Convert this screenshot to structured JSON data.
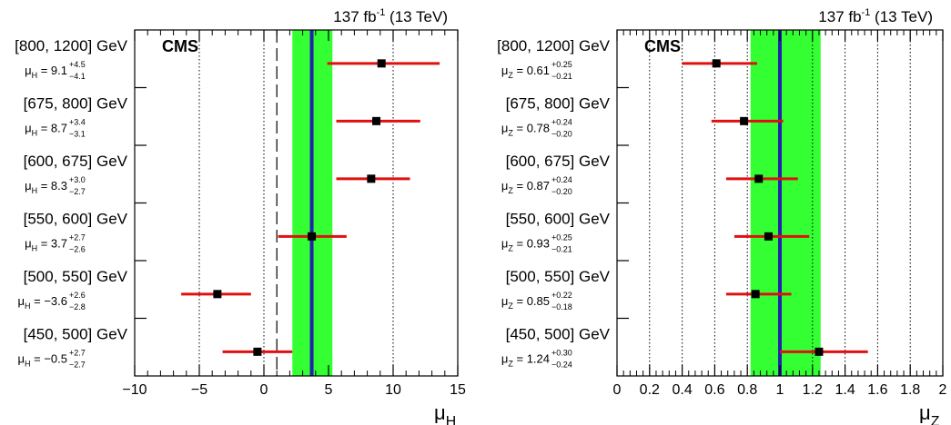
{
  "colors": {
    "band": "#33ff33",
    "central": "#2222aa",
    "errorbar": "#e01010",
    "marker": "#000000"
  },
  "chart_data": [
    {
      "type": "scatter",
      "variant": "horizontal error bars per mass bin",
      "title": "",
      "lumi_label": "137 fb⁻¹ (13 TeV)",
      "experiment_label": "CMS",
      "xlabel": "μ_H",
      "xlim": [
        -10,
        15
      ],
      "xticks": [
        -10,
        -5,
        0,
        5,
        10,
        15
      ],
      "xtick_labels": [
        "−10",
        "−5",
        "0",
        "5",
        "10",
        "15"
      ],
      "dotted_gridlines_at": [
        -5,
        0,
        10
      ],
      "dashed_reference_line": 1,
      "combined": {
        "value": 3.7,
        "band": [
          2.2,
          5.3
        ]
      },
      "points": [
        {
          "bin": "[800, 1200] GeV",
          "param": "μ_H",
          "central": "9.1",
          "up": "+4.5",
          "down": "−4.1",
          "value": 9.1,
          "lo": 4.9,
          "hi": 13.6
        },
        {
          "bin": "[675, 800] GeV",
          "param": "μ_H",
          "central": "8.7",
          "up": "+3.4",
          "down": "−3.1",
          "value": 8.7,
          "lo": 5.6,
          "hi": 12.1
        },
        {
          "bin": "[600, 675] GeV",
          "param": "μ_H",
          "central": "8.3",
          "up": "+3.0",
          "down": "−2.7",
          "value": 8.3,
          "lo": 5.6,
          "hi": 11.3
        },
        {
          "bin": "[550, 600] GeV",
          "param": "μ_H",
          "central": "3.7",
          "up": "+2.7",
          "down": "−2.6",
          "value": 3.7,
          "lo": 1.1,
          "hi": 6.4
        },
        {
          "bin": "[500, 550] GeV",
          "param": "μ_H",
          "central": "−3.6",
          "up": "+2.6",
          "down": "−2.8",
          "value": -3.6,
          "lo": -6.4,
          "hi": -1.0
        },
        {
          "bin": "[450, 500] GeV",
          "param": "μ_H",
          "central": "−0.5",
          "up": "+2.7",
          "down": "−2.7",
          "value": -0.5,
          "lo": -3.2,
          "hi": 2.2
        }
      ]
    },
    {
      "type": "scatter",
      "variant": "horizontal error bars per mass bin",
      "title": "",
      "lumi_label": "137 fb⁻¹ (13 TeV)",
      "experiment_label": "CMS",
      "xlabel": "μ_Z",
      "xlim": [
        0,
        2
      ],
      "xticks": [
        0,
        0.2,
        0.4,
        0.6,
        0.8,
        1,
        1.2,
        1.4,
        1.6,
        1.8,
        2
      ],
      "xtick_labels": [
        "0",
        "0.2",
        "0.4",
        "0.6",
        "0.8",
        "1",
        "1.2",
        "1.4",
        "1.6",
        "1.8",
        "2"
      ],
      "dotted_gridlines_at": [
        0.2,
        0.4,
        0.6,
        0.8,
        1.2,
        1.4,
        1.6,
        1.8
      ],
      "dashed_reference_line": null,
      "combined": {
        "value": 1.0,
        "band": [
          0.82,
          1.25
        ]
      },
      "points": [
        {
          "bin": "[800, 1200] GeV",
          "param": "μ_Z",
          "central": "0.61",
          "up": "+0.25",
          "down": "−0.21",
          "value": 0.61,
          "lo": 0.4,
          "hi": 0.86
        },
        {
          "bin": "[675, 800] GeV",
          "param": "μ_Z",
          "central": "0.78",
          "up": "+0.24",
          "down": "−0.20",
          "value": 0.78,
          "lo": 0.58,
          "hi": 1.02
        },
        {
          "bin": "[600, 675] GeV",
          "param": "μ_Z",
          "central": "0.87",
          "up": "+0.24",
          "down": "−0.20",
          "value": 0.87,
          "lo": 0.67,
          "hi": 1.11
        },
        {
          "bin": "[550, 600] GeV",
          "param": "μ_Z",
          "central": "0.93",
          "up": "+0.25",
          "down": "−0.21",
          "value": 0.93,
          "lo": 0.72,
          "hi": 1.18
        },
        {
          "bin": "[500, 550] GeV",
          "param": "μ_Z",
          "central": "0.85",
          "up": "+0.22",
          "down": "−0.18",
          "value": 0.85,
          "lo": 0.67,
          "hi": 1.07
        },
        {
          "bin": "[450, 500] GeV",
          "param": "μ_Z",
          "central": "1.24",
          "up": "+0.30",
          "down": "−0.24",
          "value": 1.24,
          "lo": 1.0,
          "hi": 1.54
        }
      ]
    }
  ]
}
